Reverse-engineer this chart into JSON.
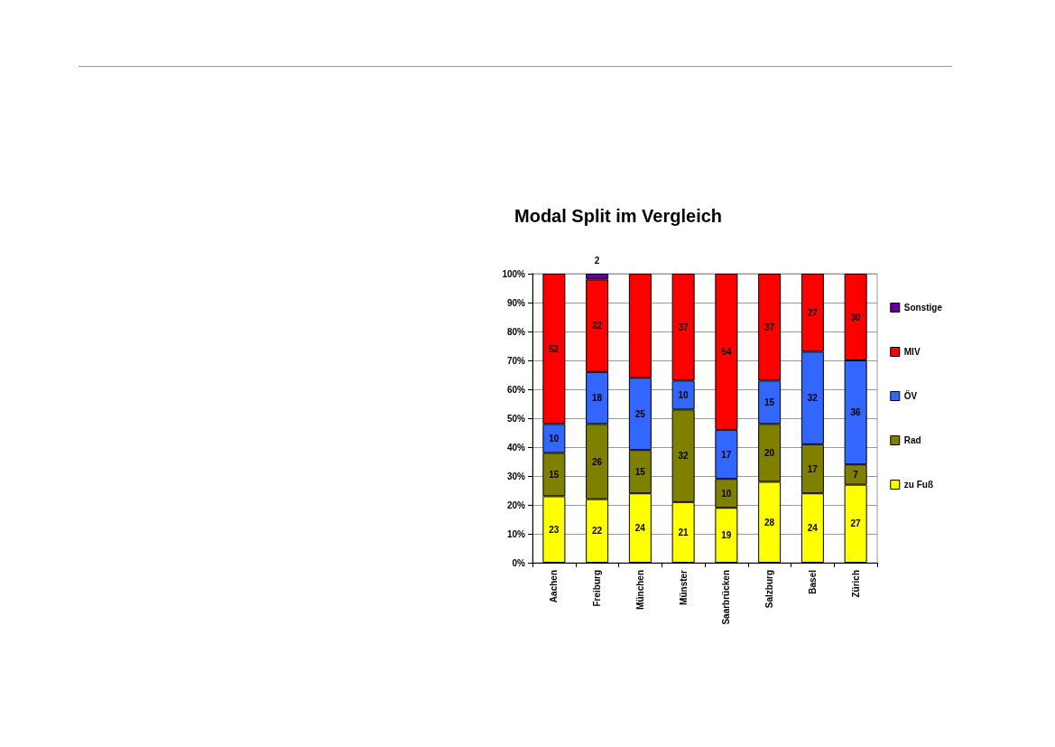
{
  "chart_data": {
    "type": "bar",
    "title": "Modal Split im Vergleich",
    "stacked": true,
    "categories": [
      "Aachen",
      "Freiburg",
      "München",
      "Münster",
      "Saarbrücken",
      "Salzburg",
      "Basel",
      "Zürich"
    ],
    "series": [
      {
        "name": "zu Fuß",
        "color": "#ffff00",
        "values": [
          23,
          22,
          24,
          21,
          19,
          28,
          24,
          27
        ],
        "value_labels": [
          "23",
          "22",
          "24",
          "21",
          "19",
          "28",
          "24",
          "27"
        ]
      },
      {
        "name": "Rad",
        "color": "#808000",
        "values": [
          15,
          26,
          15,
          32,
          10,
          20,
          17,
          7
        ],
        "value_labels": [
          "15",
          "26",
          "15",
          "32",
          "10",
          "20",
          "17",
          "7"
        ]
      },
      {
        "name": "ÖV",
        "color": "#3366ff",
        "values": [
          10,
          18,
          25,
          10,
          17,
          15,
          32,
          36
        ],
        "value_labels": [
          "10",
          "18",
          "25",
          "10",
          "17",
          "15",
          "32",
          "36"
        ]
      },
      {
        "name": "MIV",
        "color": "#ff0000",
        "values": [
          52,
          32,
          36,
          37,
          54,
          37,
          27,
          30
        ],
        "value_labels": [
          "52",
          "32",
          null,
          "37",
          "54",
          "37",
          "27",
          "30"
        ]
      },
      {
        "name": "Sonstige",
        "color": "#660099",
        "values": [
          null,
          2,
          null,
          null,
          null,
          null,
          null,
          null
        ],
        "value_labels": [
          null,
          "2",
          null,
          null,
          null,
          null,
          null,
          null
        ]
      }
    ],
    "ylim": [
      0,
      100
    ],
    "yticks": [
      {
        "value": 0,
        "label": "0%"
      },
      {
        "value": 10,
        "label": "10%"
      },
      {
        "value": 20,
        "label": "20%"
      },
      {
        "value": 30,
        "label": "30%"
      },
      {
        "value": 40,
        "label": "40%"
      },
      {
        "value": 50,
        "label": "50%"
      },
      {
        "value": 60,
        "label": "60%"
      },
      {
        "value": 70,
        "label": "70%"
      },
      {
        "value": 80,
        "label": "80%"
      },
      {
        "value": 90,
        "label": "90%"
      },
      {
        "value": 100,
        "label": "100%"
      }
    ],
    "grid": "y",
    "legend": "right"
  }
}
